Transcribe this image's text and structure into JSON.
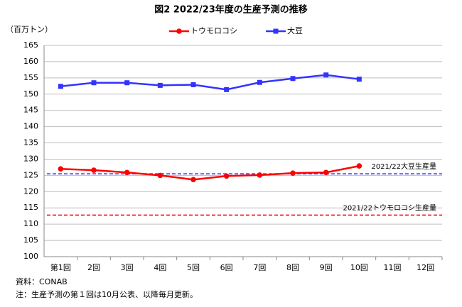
{
  "chart_data": {
    "type": "line",
    "title": "図2 2022/23年度の生産予測の推移",
    "y_label": "（百万トン）",
    "categories": [
      "第1回",
      "2回",
      "3回",
      "4回",
      "5回",
      "6回",
      "7回",
      "8回",
      "9回",
      "10回",
      "11回",
      "12回"
    ],
    "series": [
      {
        "name": "トウモロコシ",
        "color": "#ff0000",
        "marker": "circle",
        "values": [
          127.0,
          126.6,
          125.9,
          125.0,
          123.7,
          124.8,
          125.1,
          125.7,
          125.9,
          127.9,
          null,
          null
        ]
      },
      {
        "name": "大豆",
        "color": "#3333ff",
        "marker": "square",
        "values": [
          152.4,
          153.5,
          153.5,
          152.7,
          152.9,
          151.4,
          153.6,
          154.8,
          155.9,
          154.6,
          null,
          null
        ]
      }
    ],
    "reference_lines": [
      {
        "label": "2021/22大豆生産量",
        "value": 125.5,
        "color": "#3333ff"
      },
      {
        "label": "2021/22トウモロコシ生産量",
        "value": 112.8,
        "color": "#ff0000"
      }
    ],
    "ylim": [
      100,
      165
    ],
    "yticks": [
      100,
      105,
      110,
      115,
      120,
      125,
      130,
      135,
      140,
      145,
      150,
      155,
      160,
      165
    ],
    "grid": true,
    "legend": "top",
    "notes": [
      "資料：CONAB",
      "注：生産予測の第１回は10月公表、以降毎月更新。"
    ]
  }
}
